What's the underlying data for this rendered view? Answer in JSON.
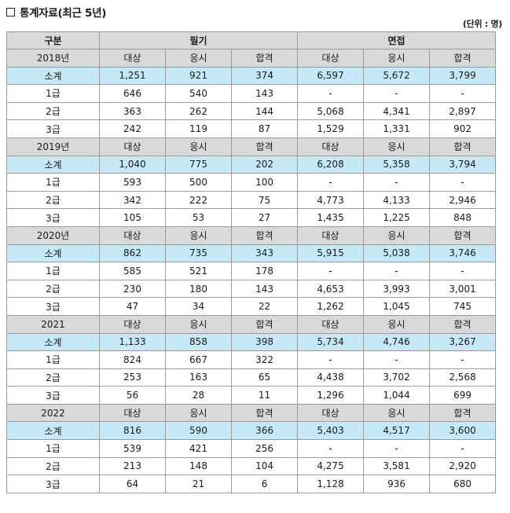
{
  "title": "통계자료(최근 5년)",
  "unit_note": "(단위 : 명)",
  "header": {
    "category": "구분",
    "written": "필기",
    "interview": "면접"
  },
  "years": [
    {
      "label": "2018년",
      "cols": [
        "대상",
        "응시",
        "합격",
        "대상",
        "응시",
        "합격"
      ],
      "rows": [
        {
          "label": "소계",
          "values": [
            "1,251",
            "921",
            "374",
            "6,597",
            "5,672",
            "3,799"
          ]
        },
        {
          "label": "1급",
          "values": [
            "646",
            "540",
            "143",
            "-",
            "-",
            "-"
          ]
        },
        {
          "label": "2급",
          "values": [
            "363",
            "262",
            "144",
            "5,068",
            "4,341",
            "2,897"
          ]
        },
        {
          "label": "3급",
          "values": [
            "242",
            "119",
            "87",
            "1,529",
            "1,331",
            "902"
          ]
        }
      ]
    },
    {
      "label": "2019년",
      "cols": [
        "대상",
        "응시",
        "합격",
        "대상",
        "응시",
        "합격"
      ],
      "rows": [
        {
          "label": "소계",
          "values": [
            "1,040",
            "775",
            "202",
            "6,208",
            "5,358",
            "3,794"
          ]
        },
        {
          "label": "1급",
          "values": [
            "593",
            "500",
            "100",
            "-",
            "-",
            "-"
          ]
        },
        {
          "label": "2급",
          "values": [
            "342",
            "222",
            "75",
            "4,773",
            "4,133",
            "2,946"
          ]
        },
        {
          "label": "3급",
          "values": [
            "105",
            "53",
            "27",
            "1,435",
            "1,225",
            "848"
          ]
        }
      ]
    },
    {
      "label": "2020년",
      "cols": [
        "대상",
        "응시",
        "합격",
        "대상",
        "응시",
        "합격"
      ],
      "rows": [
        {
          "label": "소계",
          "values": [
            "862",
            "735",
            "343",
            "5,915",
            "5,038",
            "3,746"
          ]
        },
        {
          "label": "1급",
          "values": [
            "585",
            "521",
            "178",
            "-",
            "-",
            "-"
          ]
        },
        {
          "label": "2급",
          "values": [
            "230",
            "180",
            "143",
            "4,653",
            "3,993",
            "3,001"
          ]
        },
        {
          "label": "3급",
          "values": [
            "47",
            "34",
            "22",
            "1,262",
            "1,045",
            "745"
          ]
        }
      ]
    },
    {
      "label": "2021",
      "cols": [
        "대상",
        "응시",
        "합격",
        "대상",
        "응시",
        "합격"
      ],
      "rows": [
        {
          "label": "소계",
          "values": [
            "1,133",
            "858",
            "398",
            "5,734",
            "4,746",
            "3,267"
          ]
        },
        {
          "label": "1급",
          "values": [
            "824",
            "667",
            "322",
            "-",
            "-",
            "-"
          ]
        },
        {
          "label": "2급",
          "values": [
            "253",
            "163",
            "65",
            "4,438",
            "3,702",
            "2,568"
          ]
        },
        {
          "label": "3급",
          "values": [
            "56",
            "28",
            "11",
            "1,296",
            "1,044",
            "699"
          ]
        }
      ]
    },
    {
      "label": "2022",
      "cols": [
        "대상",
        "응시",
        "합격",
        "대상",
        "응시",
        "합격"
      ],
      "rows": [
        {
          "label": "소계",
          "values": [
            "816",
            "590",
            "366",
            "5,403",
            "4,517",
            "3,600"
          ]
        },
        {
          "label": "1급",
          "values": [
            "539",
            "421",
            "256",
            "-",
            "-",
            "-"
          ]
        },
        {
          "label": "2급",
          "values": [
            "213",
            "148",
            "104",
            "4,275",
            "3,581",
            "2,920"
          ]
        },
        {
          "label": "3급",
          "values": [
            "64",
            "21",
            "6",
            "1,128",
            "936",
            "680"
          ]
        }
      ]
    }
  ]
}
